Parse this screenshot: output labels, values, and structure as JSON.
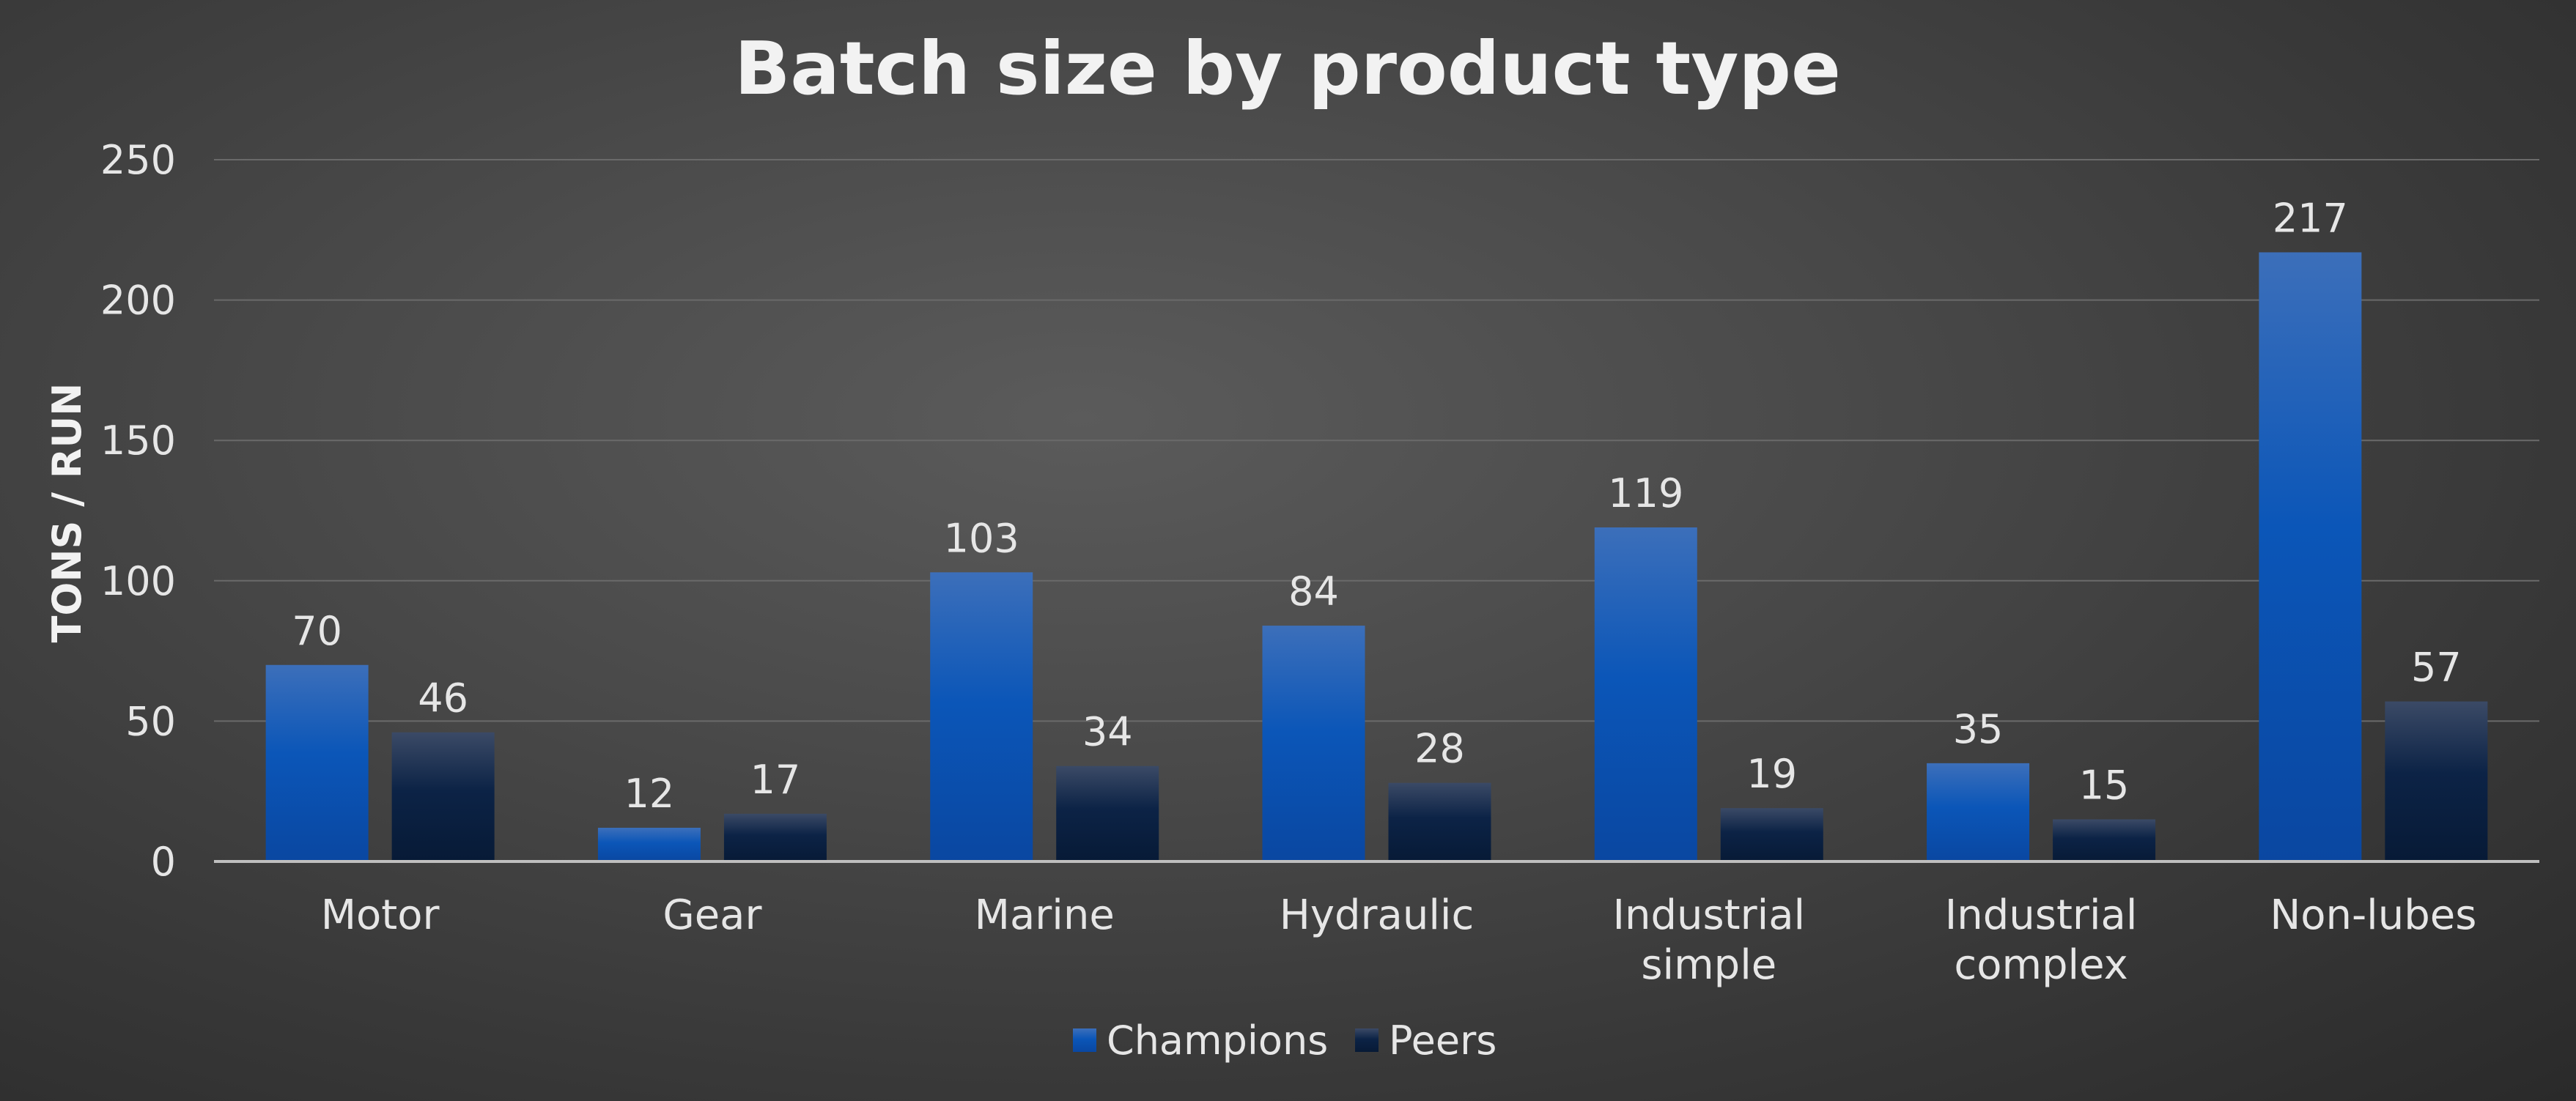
{
  "chart_data": {
    "type": "bar",
    "title": "Batch size by product type",
    "ylabel": "TONS / RUN",
    "xlabel": "",
    "ylim": [
      0,
      250
    ],
    "yticks": [
      0,
      50,
      100,
      150,
      200,
      250
    ],
    "grid": true,
    "legend_position": "bottom",
    "categories": [
      [
        "Motor"
      ],
      [
        "Gear"
      ],
      [
        "Marine"
      ],
      [
        "Hydraulic"
      ],
      [
        "Industrial",
        "simple"
      ],
      [
        "Industrial",
        "complex"
      ],
      [
        "Non-lubes"
      ]
    ],
    "series": [
      {
        "name": "Champions",
        "values": [
          70,
          12,
          103,
          84,
          119,
          35,
          217
        ],
        "colors": [
          "#3c6fba",
          "#0b56b8",
          "#0a47a1"
        ]
      },
      {
        "name": "Peers",
        "values": [
          46,
          17,
          34,
          28,
          19,
          15,
          57
        ],
        "colors": [
          "#3b4a66",
          "#0c2346",
          "#071a36"
        ]
      }
    ]
  }
}
